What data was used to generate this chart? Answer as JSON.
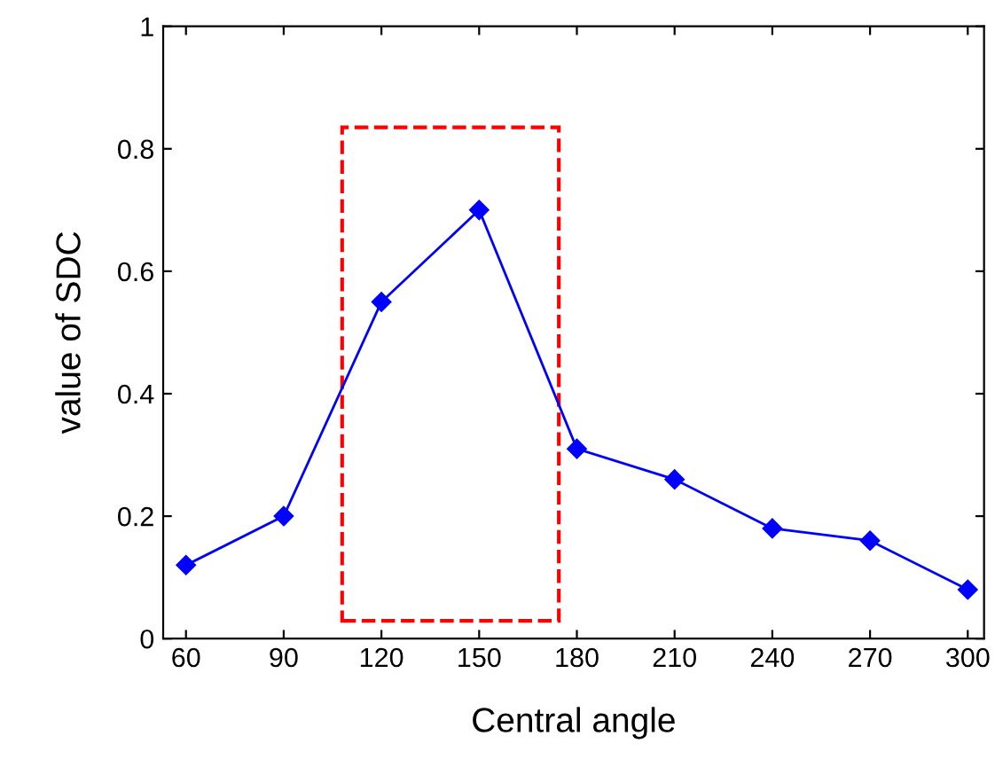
{
  "chart_data": {
    "type": "line",
    "xlabel": "Central angle",
    "ylabel": "value of SDC",
    "x": [
      60,
      90,
      120,
      150,
      180,
      210,
      240,
      270,
      300
    ],
    "series": [
      {
        "color": "#0000ff",
        "values": [
          0.12,
          0.2,
          0.55,
          0.7,
          0.31,
          0.26,
          0.18,
          0.16,
          0.08
        ]
      }
    ],
    "xlim": [
      53,
      305
    ],
    "xticks": [
      60,
      90,
      120,
      150,
      180,
      210,
      240,
      270,
      300
    ],
    "ylim": [
      0,
      1
    ],
    "yticks": [
      0,
      {
        "value": 0.2,
        "label": "0.2"
      },
      {
        "value": 0.4,
        "label": "0.4"
      },
      {
        "value": 0.6,
        "label": "0.6"
      },
      {
        "value": 0.8,
        "label": "0.8"
      },
      1
    ],
    "grid": false,
    "legend": false,
    "marker": "diamond",
    "line_style": "solid"
  }
}
